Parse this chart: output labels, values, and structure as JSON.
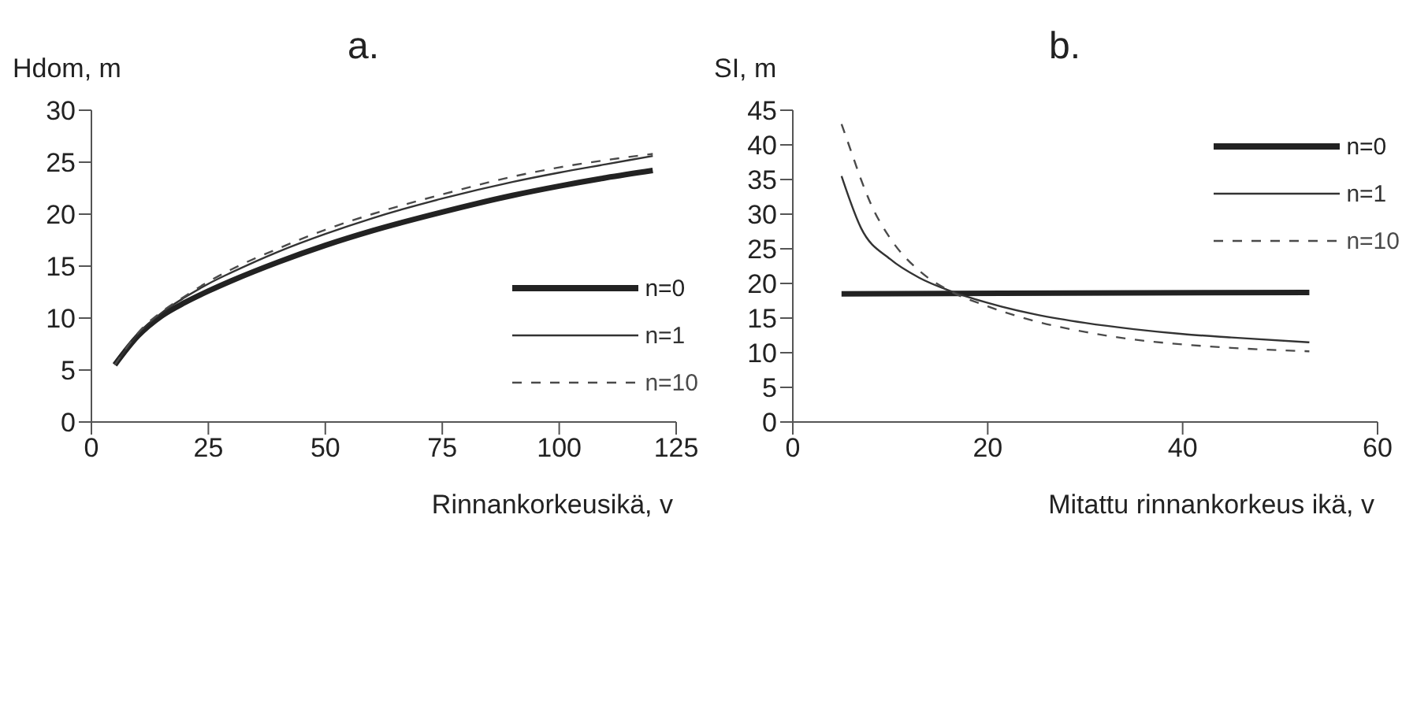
{
  "chart_data": [
    {
      "type": "line",
      "title": "a.",
      "ylabel": "Hdom, m",
      "xlabel": "Rinnankorkeusikä, v",
      "xlim": [
        0,
        125
      ],
      "xticks": [
        0,
        25,
        50,
        75,
        100,
        125
      ],
      "ylim": [
        0,
        30
      ],
      "yticks": [
        0,
        5,
        10,
        15,
        20,
        25,
        30
      ],
      "grid": false,
      "legend": "bottom right",
      "marker": "none",
      "series": [
        {
          "name": "n=0",
          "color": "#222222",
          "line_style": "solid",
          "x": [
            5,
            10,
            15,
            20,
            25,
            30,
            40,
            50,
            60,
            75,
            90,
            100,
            110,
            120
          ],
          "values": [
            5.5,
            8.3,
            10.2,
            11.5,
            12.6,
            13.6,
            15.4,
            17.0,
            18.4,
            20.2,
            21.8,
            22.7,
            23.5,
            24.2
          ]
        },
        {
          "name": "n=1",
          "color": "#333333",
          "line_style": "solid",
          "x": [
            5,
            10,
            15,
            20,
            25,
            30,
            40,
            50,
            60,
            75,
            90,
            100,
            110,
            120
          ],
          "values": [
            5.5,
            8.5,
            10.5,
            12.0,
            13.3,
            14.4,
            16.4,
            18.1,
            19.6,
            21.5,
            23.1,
            24.0,
            24.8,
            25.6
          ]
        },
        {
          "name": "n=10",
          "color": "#4a4a4a",
          "line_style": "dashed",
          "x": [
            5,
            10,
            15,
            20,
            25,
            30,
            40,
            50,
            60,
            75,
            90,
            100,
            110,
            120
          ],
          "values": [
            5.5,
            8.6,
            10.6,
            12.1,
            13.5,
            14.7,
            16.7,
            18.5,
            20.0,
            21.9,
            23.6,
            24.5,
            25.2,
            25.8
          ]
        }
      ]
    },
    {
      "type": "line",
      "title": "b.",
      "ylabel": "SI, m",
      "xlabel": "Mitattu rinnankorkeus ikä, v",
      "xlim": [
        0,
        60
      ],
      "xticks": [
        0,
        20,
        40,
        60
      ],
      "ylim": [
        0,
        45
      ],
      "yticks": [
        0,
        5,
        10,
        15,
        20,
        25,
        30,
        35,
        40,
        45
      ],
      "grid": false,
      "legend": "top right",
      "marker": "none",
      "series": [
        {
          "name": "n=0",
          "color": "#222222",
          "line_style": "solid",
          "x": [
            5,
            53
          ],
          "values": [
            18.5,
            18.7
          ]
        },
        {
          "name": "n=1",
          "color": "#333333",
          "line_style": "solid",
          "x": [
            5,
            7,
            10,
            13,
            16,
            20,
            25,
            30,
            35,
            40,
            45,
            53
          ],
          "values": [
            35.5,
            28,
            23.5,
            20.8,
            19,
            17.2,
            15.5,
            14.3,
            13.4,
            12.7,
            12.2,
            11.5
          ]
        },
        {
          "name": "n=10",
          "color": "#4a4a4a",
          "line_style": "dashed",
          "x": [
            5,
            6,
            7,
            8,
            10,
            13,
            16,
            20,
            25,
            30,
            35,
            40,
            45,
            53
          ],
          "values": [
            43,
            39,
            35,
            31.5,
            26.5,
            21.8,
            19,
            16.7,
            14.5,
            13,
            11.9,
            11.2,
            10.7,
            10.2
          ]
        }
      ]
    }
  ]
}
